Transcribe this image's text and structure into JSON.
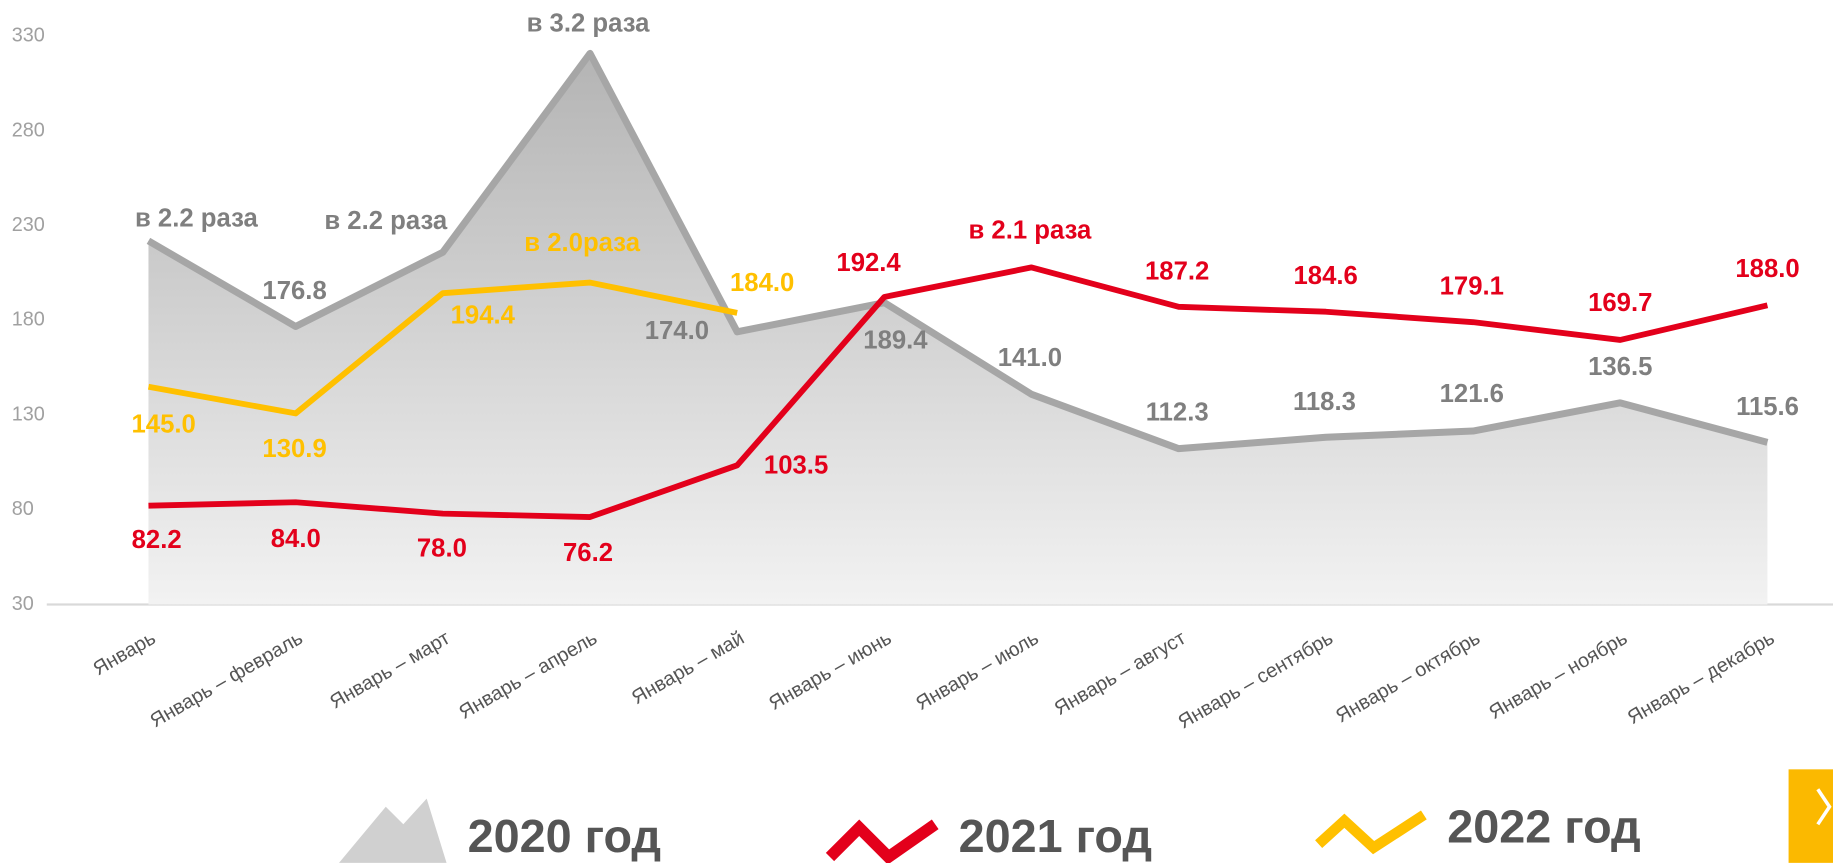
{
  "chart_data": {
    "type": "line",
    "categories": [
      "Январь",
      "Январь – февраль",
      "Январь – март",
      "Январь – апрель",
      "Январь – май",
      "Январь – июнь",
      "Январь – июль",
      "Январь – август",
      "Январь – сентябрь",
      "Январь – октябрь",
      "Январь – ноябрь",
      "Январь – декабрь"
    ],
    "series": [
      {
        "name": "2020 год",
        "color": "#a6a6a6",
        "fill": "area",
        "values": [
          222,
          176.8,
          216,
          321,
          174.0,
          189.4,
          141.0,
          112.3,
          118.3,
          121.6,
          136.5,
          115.6
        ],
        "value_labels": [
          null,
          "176.8",
          null,
          null,
          "174.0",
          "189.4",
          "141.0",
          "112.3",
          "118.3",
          "121.6",
          "136.5",
          "115.6"
        ],
        "label_color": "#7f7f7f"
      },
      {
        "name": "2021 год",
        "color": "#e3001b",
        "values": [
          82.2,
          84.0,
          78.0,
          76.2,
          103.5,
          192.4,
          208,
          187.2,
          184.6,
          179.1,
          169.7,
          188.0
        ],
        "value_labels": [
          "82.2",
          "84.0",
          "78.0",
          "76.2",
          "103.5",
          "192.4",
          null,
          "187.2",
          "184.6",
          "179.1",
          "169.7",
          "188.0"
        ],
        "label_color": "#e3001b"
      },
      {
        "name": "2022 год",
        "color": "#ffc000",
        "values": [
          145.0,
          130.9,
          194.4,
          200,
          184.0,
          null,
          null,
          null,
          null,
          null,
          null,
          null
        ],
        "value_labels": [
          "145.0",
          "130.9",
          "194.4",
          null,
          "184.0",
          null,
          null,
          null,
          null,
          null,
          null,
          null
        ],
        "label_color": "#ffc000"
      }
    ],
    "annotations": [
      {
        "text": "в 2.2 раза",
        "category": "Январь",
        "series": "2020 год"
      },
      {
        "text": "в 2.2 раза",
        "category": "Январь – март",
        "series": "2020 год"
      },
      {
        "text": "в 3.2 раза",
        "category": "Январь – апрель",
        "series": "2020 год"
      },
      {
        "text": "в 2.0раза",
        "category": "Январь – апрель",
        "series": "2022 год"
      },
      {
        "text": "в 2.1 раза",
        "category": "Январь – июль",
        "series": "2021 год"
      }
    ],
    "ylim": [
      30,
      330
    ],
    "yticks": [
      30,
      80,
      130,
      180,
      230,
      280,
      330
    ],
    "legend": "bottom"
  }
}
